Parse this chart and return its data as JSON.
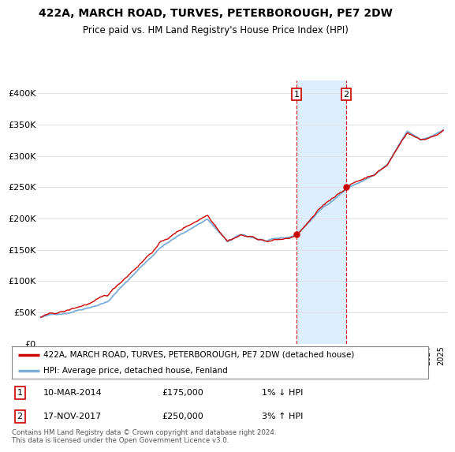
{
  "title": "422A, MARCH ROAD, TURVES, PETERBOROUGH, PE7 2DW",
  "subtitle": "Price paid vs. HM Land Registry's House Price Index (HPI)",
  "line1_label": "422A, MARCH ROAD, TURVES, PETERBOROUGH, PE7 2DW (detached house)",
  "line2_label": "HPI: Average price, detached house, Fenland",
  "line1_color": "#cc0000",
  "line2_color": "#7aaed6",
  "highlight_color": "#ddeeff",
  "sale1_date": "10-MAR-2014",
  "sale1_price": "£175,000",
  "sale1_note": "1% ↓ HPI",
  "sale2_date": "17-NOV-2017",
  "sale2_price": "£250,000",
  "sale2_note": "3% ↑ HPI",
  "ylim": [
    0,
    420000
  ],
  "yticks": [
    0,
    50000,
    100000,
    150000,
    200000,
    250000,
    300000,
    350000,
    400000
  ],
  "ytick_labels": [
    "£0",
    "£50K",
    "£100K",
    "£150K",
    "£200K",
    "£250K",
    "£300K",
    "£350K",
    "£400K"
  ],
  "footer": "Contains HM Land Registry data © Crown copyright and database right 2024.\nThis data is licensed under the Open Government Licence v3.0.",
  "bg_color": "#ffffff",
  "plot_bg_color": "#ffffff",
  "grid_color": "#e0e0e0",
  "sale1_x": 2014.19,
  "sale2_x": 2017.89,
  "highlight_x1": 2014.19,
  "highlight_x2": 2017.89,
  "xmin": 1994.8,
  "xmax": 2025.5
}
